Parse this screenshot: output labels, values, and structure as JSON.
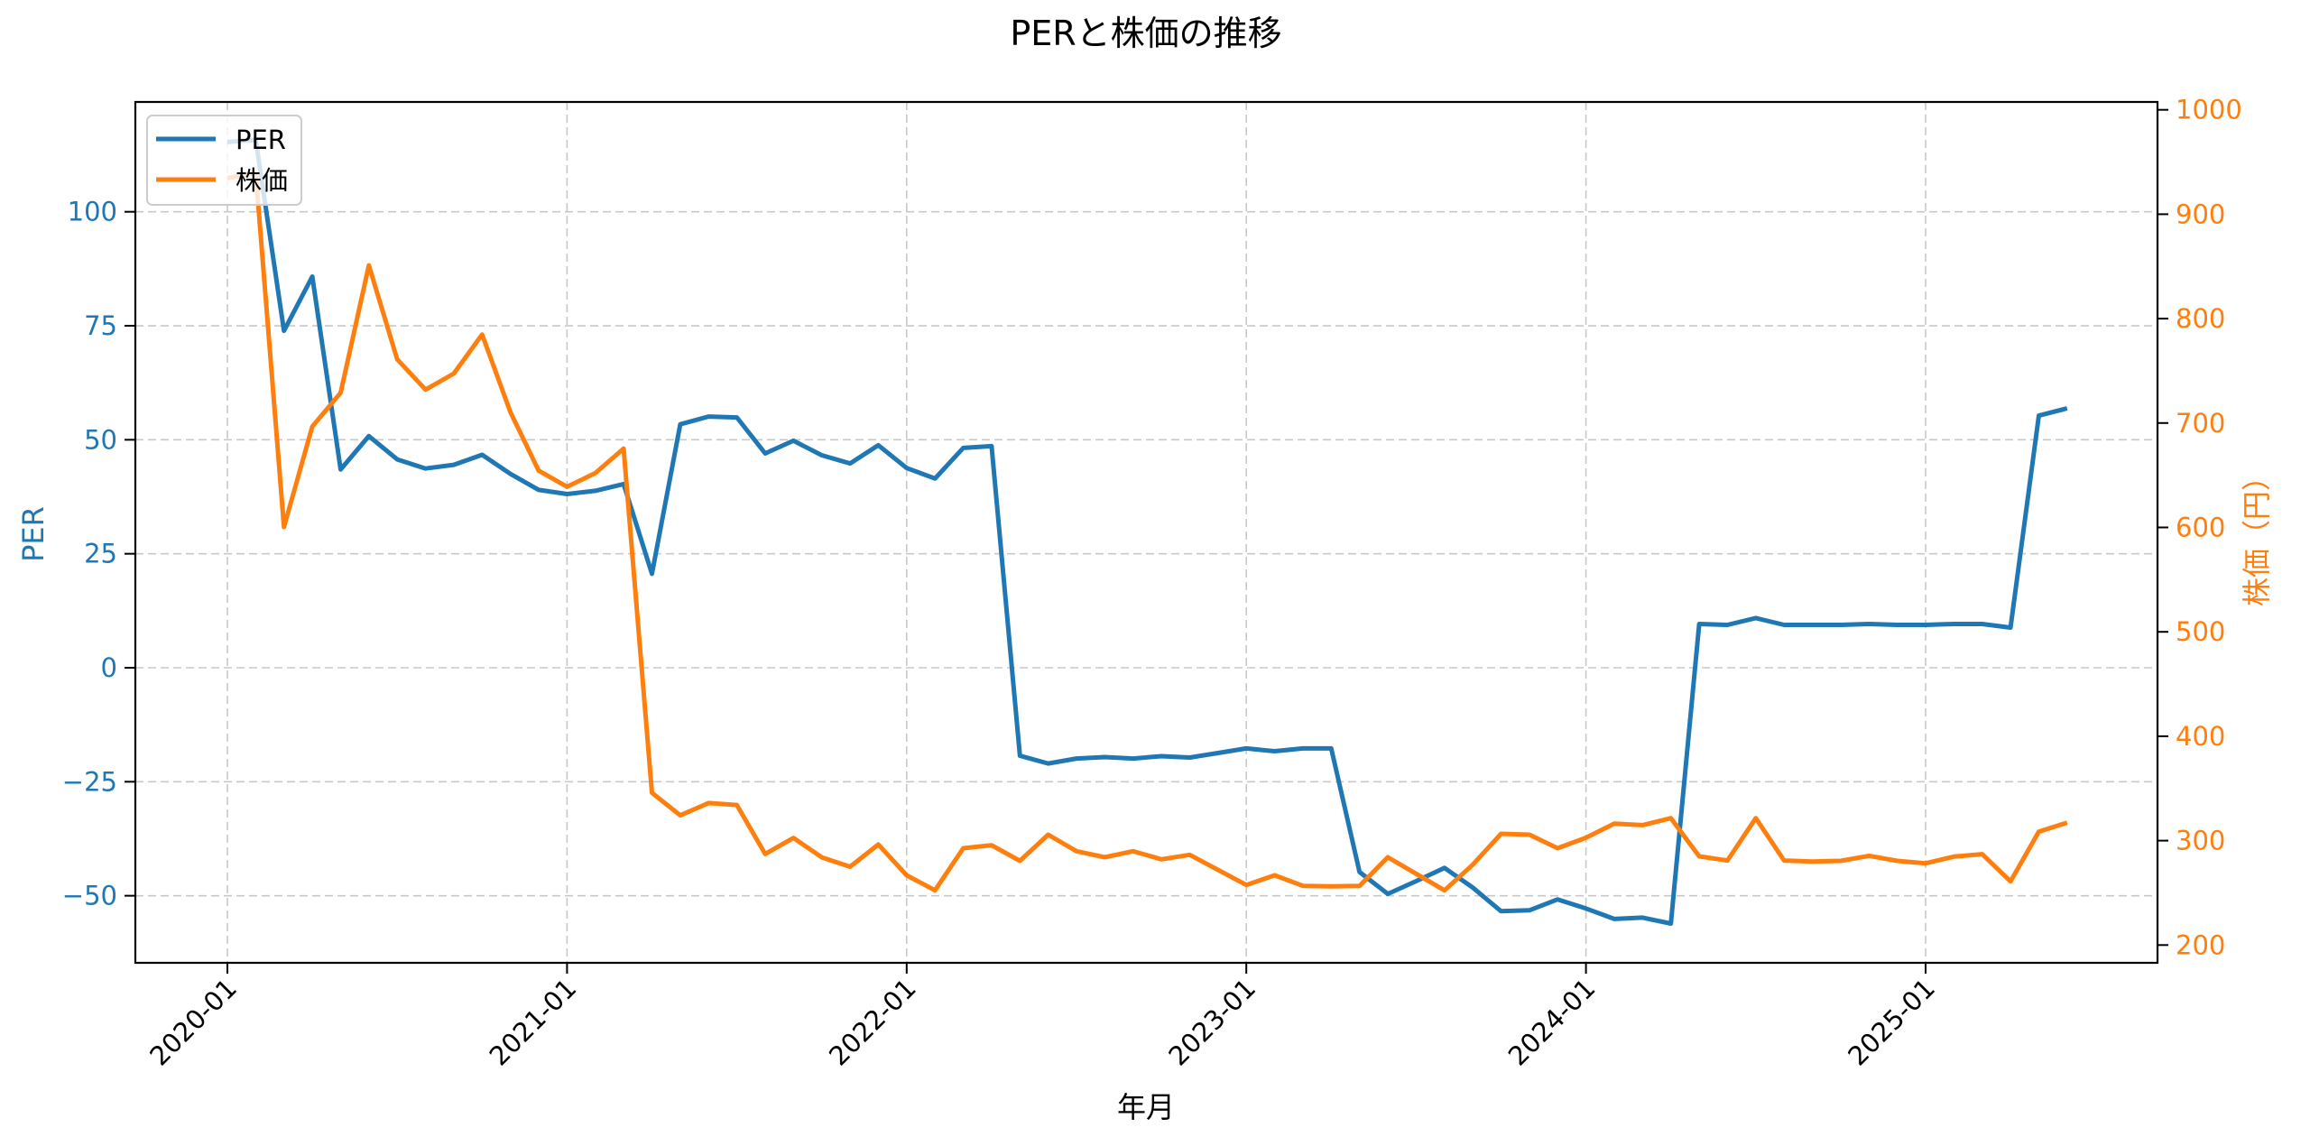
{
  "chart_data": {
    "type": "line",
    "title": "PERと株価の推移",
    "xlabel": "年月",
    "ylabel_left": "PER",
    "ylabel_right": "株価（円）",
    "x_tick_labels": [
      "2020-01",
      "2021-01",
      "2022-01",
      "2023-01",
      "2024-01",
      "2025-01"
    ],
    "y_left_ticks": [
      -50,
      -25,
      0,
      25,
      50,
      75,
      100
    ],
    "y_left_tick_labels": [
      "−50",
      "−25",
      "0",
      "25",
      "50",
      "75",
      "100"
    ],
    "y_right_ticks": [
      200,
      300,
      400,
      500,
      600,
      700,
      800,
      900,
      1000
    ],
    "ylim_left": [
      -62,
      121
    ],
    "ylim_right": [
      183,
      1008
    ],
    "grid": true,
    "legend_position": "upper left",
    "x": [
      "2020-01",
      "2020-02",
      "2020-03",
      "2020-04",
      "2020-05",
      "2020-06",
      "2020-07",
      "2020-08",
      "2020-09",
      "2020-10",
      "2020-11",
      "2020-12",
      "2021-01",
      "2021-02",
      "2021-03",
      "2021-04",
      "2021-05",
      "2021-06",
      "2021-07",
      "2021-08",
      "2021-09",
      "2021-10",
      "2021-11",
      "2021-12",
      "2022-01",
      "2022-02",
      "2022-03",
      "2022-04",
      "2022-05",
      "2022-06",
      "2022-07",
      "2022-08",
      "2022-09",
      "2022-10",
      "2022-11",
      "2022-12",
      "2023-01",
      "2023-02",
      "2023-03",
      "2023-04",
      "2023-05",
      "2023-06",
      "2023-07",
      "2023-08",
      "2023-09",
      "2023-10",
      "2023-11",
      "2023-12",
      "2024-01",
      "2024-02",
      "2024-03",
      "2024-04",
      "2024-05",
      "2024-06",
      "2024-07",
      "2024-08",
      "2024-09",
      "2024-10",
      "2024-11",
      "2024-12",
      "2025-01",
      "2025-02",
      "2025-03",
      "2025-04",
      "2025-05",
      "2025-06"
    ],
    "series": [
      {
        "name": "PER",
        "axis": "left",
        "color": "#1f77b4",
        "values": [
          115.3,
          115.8,
          73.9,
          85.8,
          43.5,
          50.8,
          45.7,
          43.7,
          44.5,
          46.7,
          42.5,
          39.0,
          38.1,
          38.8,
          40.3,
          20.6,
          53.4,
          55.1,
          54.9,
          47.0,
          49.8,
          46.6,
          44.8,
          48.8,
          43.8,
          41.5,
          48.2,
          48.6,
          -19.3,
          -21.0,
          -19.9,
          -19.6,
          -19.9,
          -19.4,
          -19.7,
          -18.7,
          -17.7,
          -18.3,
          -17.7,
          -17.7,
          -44.8,
          -49.6,
          -46.8,
          -43.9,
          -48.2,
          -53.4,
          -53.2,
          -50.8,
          -52.8,
          -55.1,
          -54.8,
          -56.1,
          9.6,
          9.4,
          10.9,
          9.4,
          9.4,
          9.4,
          9.6,
          9.4,
          9.4,
          9.6,
          9.6,
          8.8,
          55.3,
          56.9
        ]
      },
      {
        "name": "株価",
        "axis": "right",
        "color": "#ff7f0e",
        "values": [
          934.6,
          939.5,
          600.4,
          696.6,
          729.0,
          851.0,
          761.0,
          732.0,
          747.4,
          784.8,
          710.3,
          654.4,
          639.0,
          652.0,
          675.5,
          345.8,
          324.2,
          336.0,
          334.1,
          287.2,
          302.6,
          284.0,
          275.0,
          296.3,
          266.8,
          252.4,
          292.7,
          295.6,
          280.6,
          305.7,
          289.9,
          284.1,
          289.9,
          282.1,
          286.4,
          272.0,
          257.6,
          266.8,
          256.7,
          256.2,
          256.7,
          284.1,
          268.3,
          252.4,
          276.9,
          306.6,
          305.7,
          292.7,
          302.8,
          316.3,
          314.9,
          321.5,
          285.0,
          281.0,
          321.5,
          281.0,
          280.0,
          280.6,
          285.5,
          280.6,
          278.3,
          284.7,
          287.0,
          261.0,
          308.6,
          317.2
        ]
      }
    ]
  },
  "legend": {
    "items": [
      {
        "label": "PER",
        "color": "#1f77b4"
      },
      {
        "label": "株価",
        "color": "#ff7f0e"
      }
    ]
  }
}
